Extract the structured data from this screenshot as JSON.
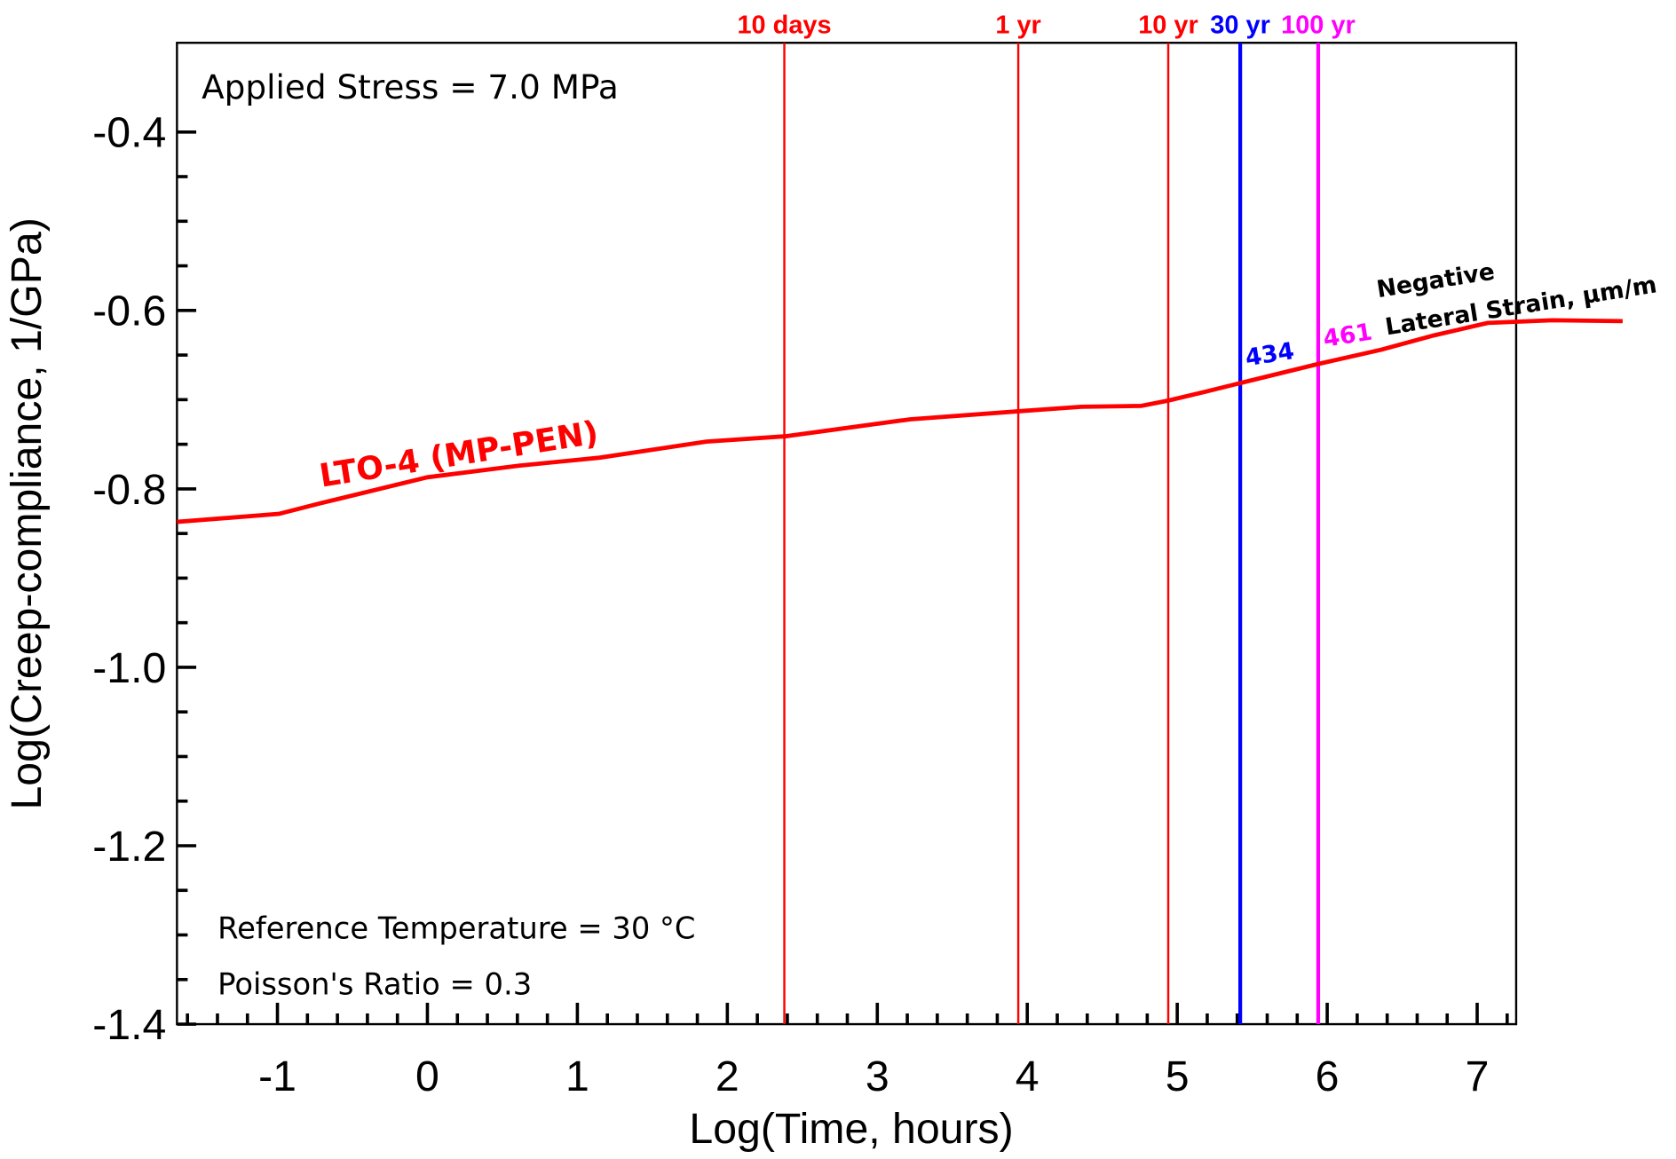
{
  "chart_data": {
    "type": "line",
    "x_label": "Log(Time, hours)",
    "y_label": "Log(Creep-compliance, 1/GPa)",
    "xlim": [
      -1.67,
      7.26
    ],
    "ylim": [
      -1.4,
      -0.3
    ],
    "xticks": [
      -1,
      0,
      1,
      2,
      3,
      4,
      5,
      6,
      7
    ],
    "yticks": [
      -1.4,
      -1.2,
      {
        "value": -1,
        "label": "-1.0"
      },
      -0.8,
      -0.6,
      -0.4
    ],
    "series": [
      {
        "name": "LTO-4 (MP-PEN)",
        "color": "#ff0000",
        "x": [
          -1.67,
          -0.99,
          -0.71,
          0,
          0.61,
          1.15,
          1.86,
          2.39,
          3.22,
          3.94,
          4.36,
          4.76,
          4.94,
          5.19,
          5.43,
          5.94,
          6.36,
          6.71,
          7.07,
          7.5,
          7.97
        ],
        "values": [
          -0.837,
          -0.828,
          -0.816,
          -0.787,
          -0.774,
          -0.765,
          -0.747,
          -0.741,
          -0.722,
          -0.713,
          -0.708,
          -0.707,
          -0.701,
          -0.691,
          -0.681,
          -0.66,
          -0.644,
          -0.628,
          -0.614,
          -0.611,
          -0.612
        ]
      }
    ],
    "markers": [
      {
        "label": "10 days",
        "x": 2.38,
        "color": "#ff0000"
      },
      {
        "label": "1 yr",
        "x": 3.94,
        "color": "#ff0000"
      },
      {
        "label": "10 yr",
        "x": 4.94,
        "color": "#ff0000"
      },
      {
        "label": "30 yr",
        "x": 5.42,
        "color": "#0000ff",
        "strain": 434
      },
      {
        "label": "100 yr",
        "x": 5.94,
        "color": "#ff00ff",
        "strain": 461
      }
    ],
    "strain_title": [
      "Negative",
      "Lateral Strain, µm/m"
    ],
    "annotations": [
      "Applied Stress = 7.0 MPa",
      "Reference Temperature = 30 °C",
      "Poisson's Ratio = 0.3"
    ]
  }
}
